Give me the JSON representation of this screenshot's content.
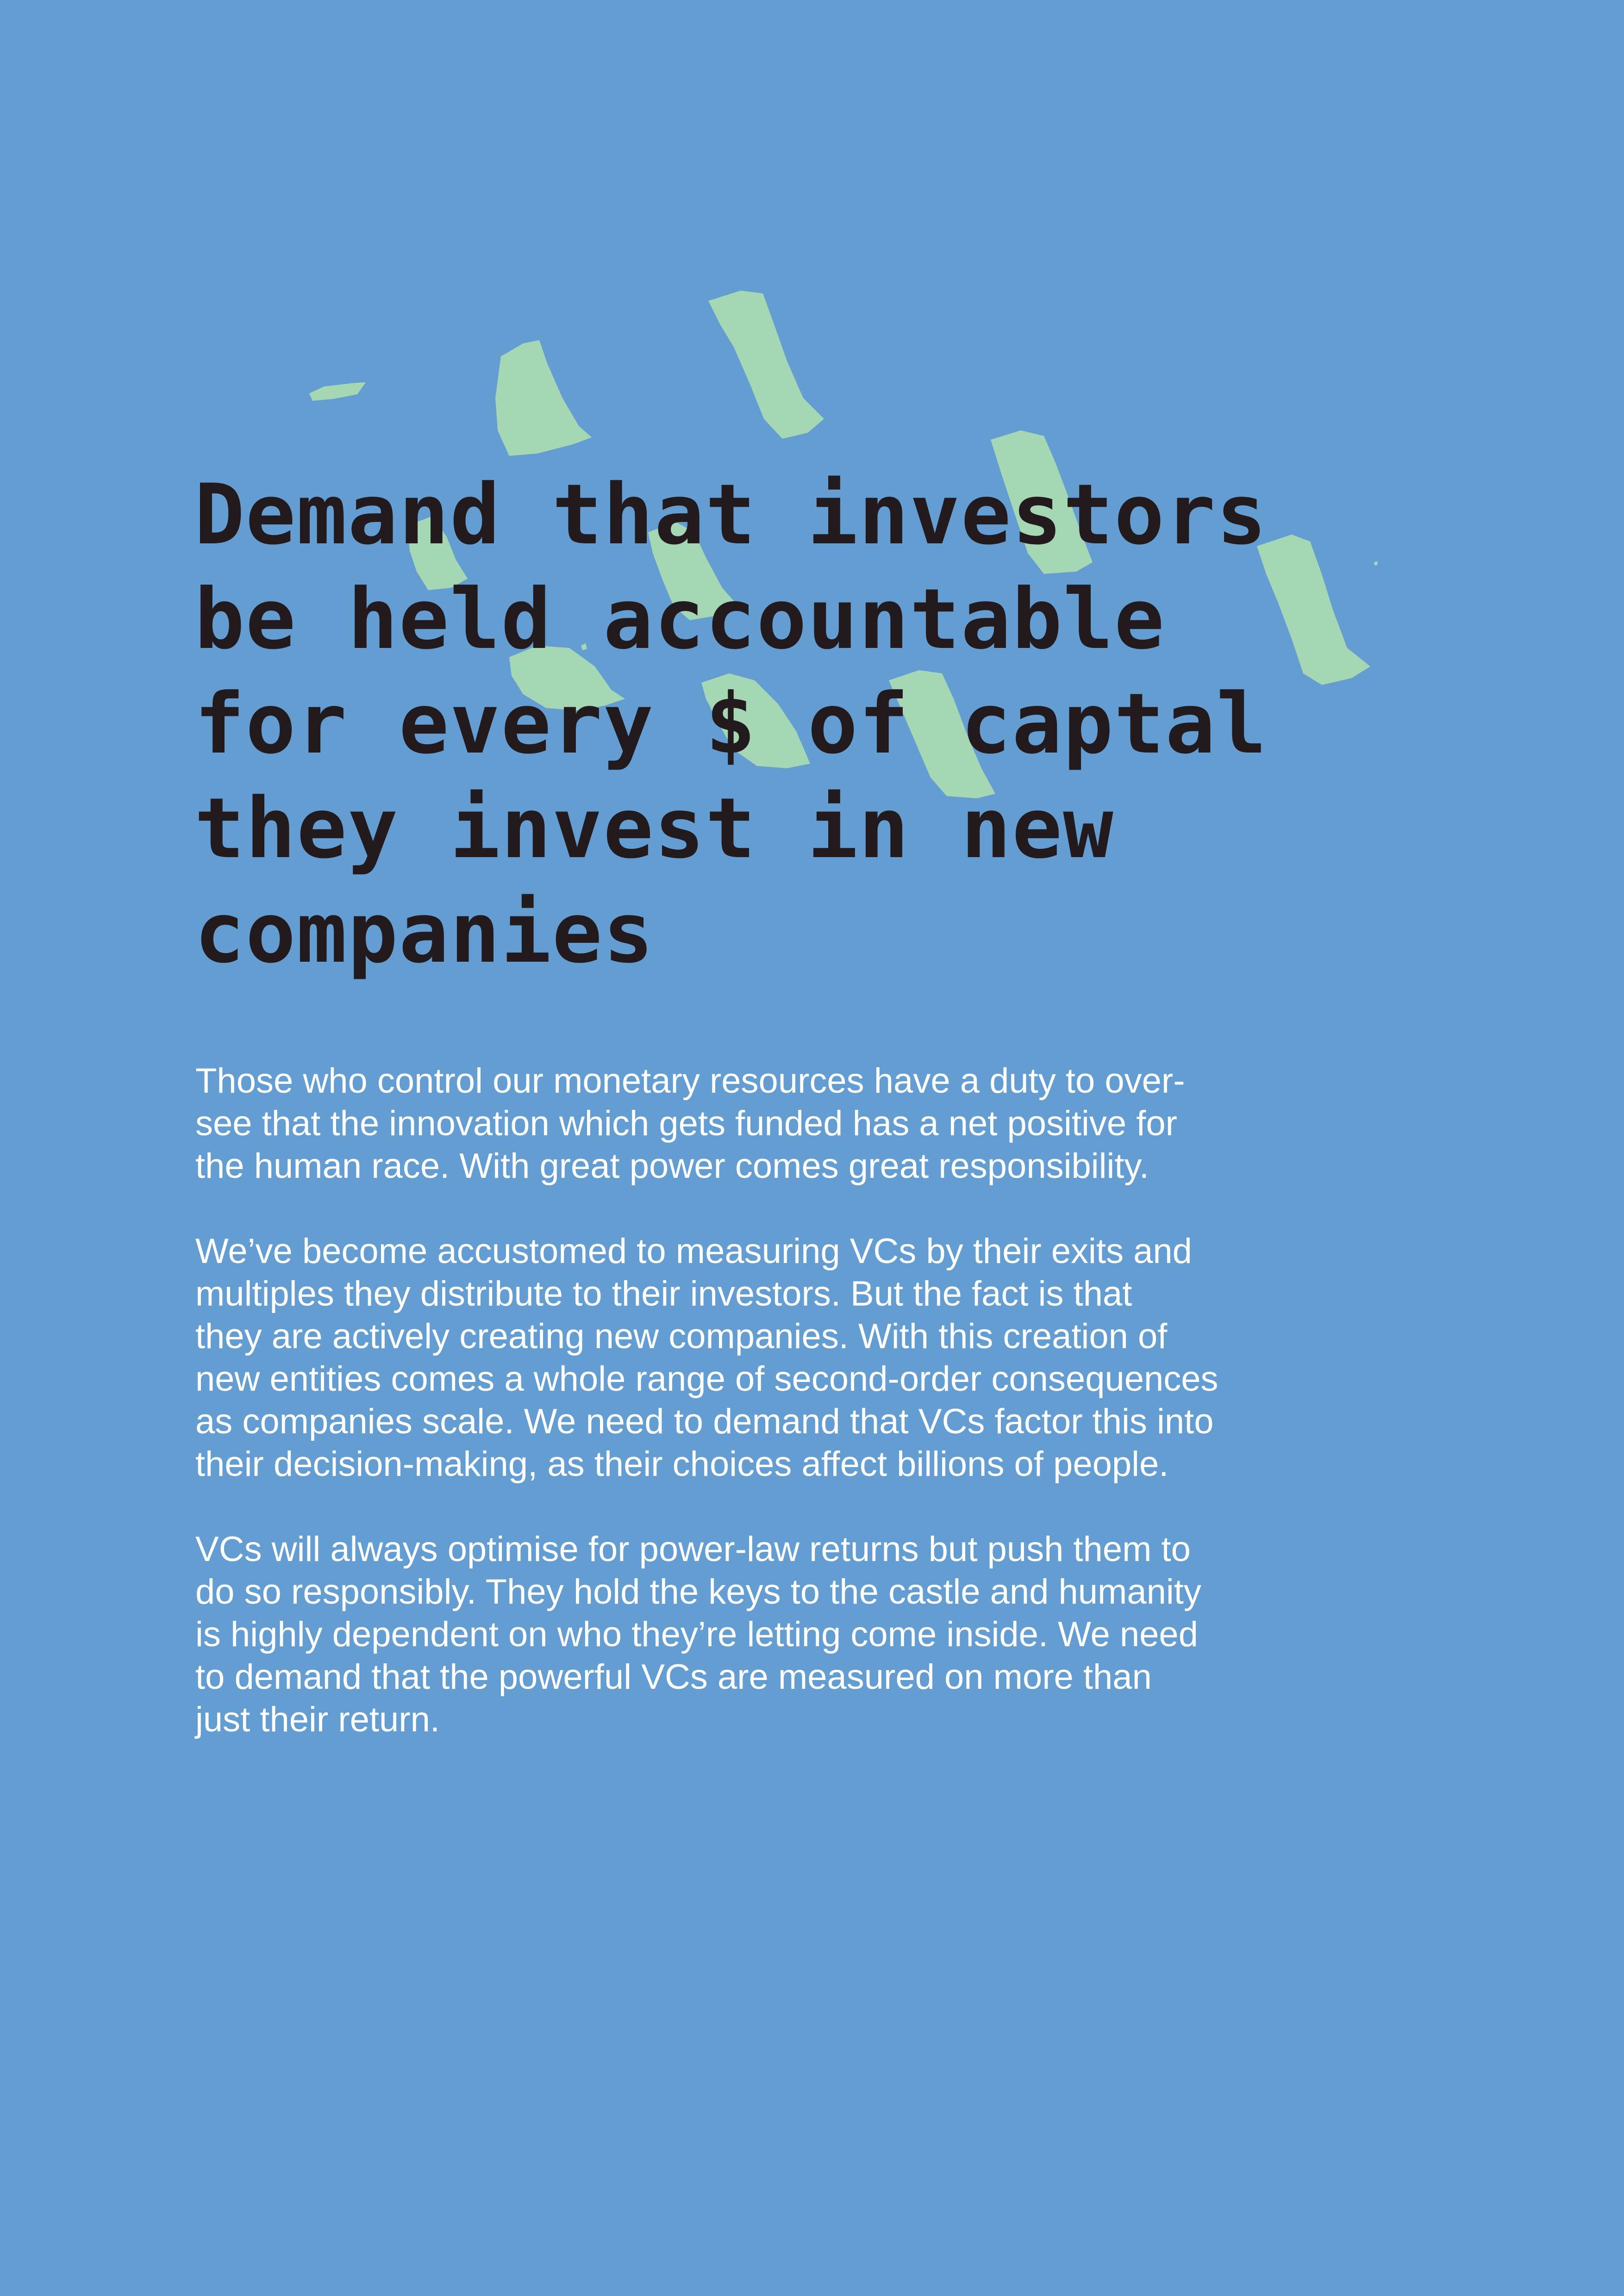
{
  "background_color": "#639dd2",
  "accent_color": "#a6d7b5",
  "text_color_heading": "#221a1c",
  "text_color_body": "#ffffff",
  "decoration": "brush-strokes",
  "headline": {
    "lines": [
      "Demand that investors",
      "be held accountable",
      "for every $ of captal",
      "they invest in new",
      "companies"
    ]
  },
  "paragraphs": [
    {
      "lines": [
        "Those who control our monetary resources have a duty to over-",
        "see that the innovation which gets funded has a net positive for",
        "the human race. With great power comes great responsibility."
      ]
    },
    {
      "lines": [
        "We’ve become accustomed to measuring VCs by their exits and",
        "multiples they distribute to their investors. But the fact is that",
        "they are actively creating new companies. With this creation of",
        "new entities comes a whole range of second-order consequences",
        "as companies scale. We need to demand that VCs factor this into",
        "their decision-making, as their choices affect billions of people."
      ]
    },
    {
      "lines": [
        "VCs will always optimise for power-law returns but push them to",
        "do so responsibly. They hold the keys to the castle and humanity",
        "is highly dependent on who they’re letting come inside. We need",
        "to demand that the powerful VCs are measured on more than",
        "just their return."
      ]
    }
  ]
}
